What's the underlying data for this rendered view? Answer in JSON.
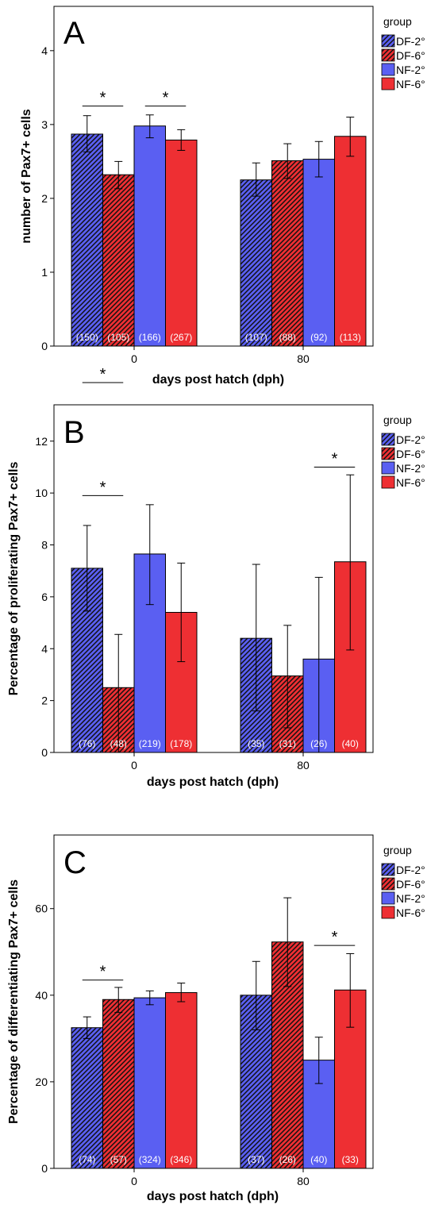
{
  "legend": {
    "title": "group",
    "entries": [
      {
        "label": "DF-2°",
        "color": "#5a5ff2",
        "hatched": true
      },
      {
        "label": "DF-6°",
        "color": "#ee2f33",
        "hatched": true
      },
      {
        "label": "NF-2°",
        "color": "#5a5ff2",
        "hatched": false
      },
      {
        "label": "NF-6°",
        "color": "#ee2f33",
        "hatched": false
      }
    ]
  },
  "chart_data": [
    {
      "type": "bar",
      "panel_letter": "A",
      "xlabel": "days post hatch (dph)",
      "ylabel": "number of Pax7+ cells",
      "ylim": [
        0,
        4.6
      ],
      "yticks": [
        0,
        1,
        2,
        3,
        4
      ],
      "categories": [
        "0",
        "80"
      ],
      "series": [
        {
          "name": "DF-2°",
          "values": [
            2.87,
            2.25
          ],
          "err_low": [
            2.63,
            2.03
          ],
          "err_high": [
            3.12,
            2.48
          ],
          "n": [
            "(150)",
            "(107)"
          ]
        },
        {
          "name": "DF-6°",
          "values": [
            2.32,
            2.51
          ],
          "err_low": [
            2.13,
            2.27
          ],
          "err_high": [
            2.5,
            2.74
          ],
          "n": [
            "(105)",
            "(88)"
          ]
        },
        {
          "name": "NF-2°",
          "values": [
            2.98,
            2.53
          ],
          "err_low": [
            2.82,
            2.29
          ],
          "err_high": [
            3.13,
            2.77
          ],
          "n": [
            "(166)",
            "(92)"
          ]
        },
        {
          "name": "NF-6°",
          "values": [
            2.79,
            2.84
          ],
          "err_low": [
            2.65,
            2.57
          ],
          "err_high": [
            2.93,
            3.1
          ],
          "n": [
            "(267)",
            "(113)"
          ]
        }
      ],
      "significance": [
        {
          "label": "*",
          "category": "0",
          "between": [
            "DF-2°",
            "DF-6°"
          ],
          "placement": "above",
          "y": 3.25
        },
        {
          "label": "*",
          "category": "0",
          "between": [
            "NF-2°",
            "NF-6°"
          ],
          "placement": "above",
          "y": 3.25
        },
        {
          "label": "*",
          "category": "0",
          "between": [
            "DF-2°",
            "DF-6°"
          ],
          "placement": "below-axis"
        }
      ]
    },
    {
      "type": "bar",
      "panel_letter": "B",
      "xlabel": "days post hatch (dph)",
      "ylabel": "Percentage of proliferating Pax7+ cells",
      "ylim": [
        0,
        13.4
      ],
      "yticks": [
        0,
        2,
        4,
        6,
        8,
        10,
        12
      ],
      "categories": [
        "0",
        "80"
      ],
      "series": [
        {
          "name": "DF-2°",
          "values": [
            7.1,
            4.4
          ],
          "err_low": [
            5.45,
            1.6
          ],
          "err_high": [
            8.75,
            7.25
          ],
          "n": [
            "(76)",
            "(35)"
          ]
        },
        {
          "name": "DF-6°",
          "values": [
            2.5,
            2.95
          ],
          "err_low": [
            0,
            0.95
          ],
          "err_high": [
            4.55,
            4.9
          ],
          "n": [
            "(48)",
            "(31)"
          ]
        },
        {
          "name": "NF-2°",
          "values": [
            7.65,
            3.6
          ],
          "err_low": [
            5.7,
            0
          ],
          "err_high": [
            9.55,
            6.75
          ],
          "n": [
            "(219)",
            "(26)"
          ]
        },
        {
          "name": "NF-6°",
          "values": [
            5.4,
            7.35
          ],
          "err_low": [
            3.5,
            3.95
          ],
          "err_high": [
            7.3,
            10.7
          ],
          "n": [
            "(178)",
            "(40)"
          ]
        }
      ],
      "significance": [
        {
          "label": "*",
          "category": "0",
          "between": [
            "DF-2°",
            "DF-6°"
          ],
          "placement": "above",
          "y": 9.9
        },
        {
          "label": "*",
          "category": "80",
          "between": [
            "NF-2°",
            "NF-6°"
          ],
          "placement": "above",
          "y": 11.0
        }
      ]
    },
    {
      "type": "bar",
      "panel_letter": "C",
      "xlabel": "days post hatch (dph)",
      "ylabel": "Percentage of differentiating Pax7+ cells",
      "ylim": [
        0,
        77
      ],
      "yticks": [
        0,
        20,
        40,
        60
      ],
      "categories": [
        "0",
        "80"
      ],
      "series": [
        {
          "name": "DF-2°",
          "values": [
            32.5,
            40
          ],
          "err_low": [
            30,
            32
          ],
          "err_high": [
            35,
            47.8
          ],
          "n": [
            "(74)",
            "(37)"
          ]
        },
        {
          "name": "DF-6°",
          "values": [
            39,
            52.3
          ],
          "err_low": [
            36,
            42
          ],
          "err_high": [
            41.8,
            62.5
          ],
          "n": [
            "(57)",
            "(26)"
          ]
        },
        {
          "name": "NF-2°",
          "values": [
            39.4,
            25
          ],
          "err_low": [
            37.8,
            19.6
          ],
          "err_high": [
            41,
            30.3
          ],
          "n": [
            "(324)",
            "(40)"
          ]
        },
        {
          "name": "NF-6°",
          "values": [
            40.6,
            41.2
          ],
          "err_low": [
            38.5,
            32.6
          ],
          "err_high": [
            42.8,
            49.6
          ],
          "n": [
            "(346)",
            "(33)"
          ]
        }
      ],
      "significance": [
        {
          "label": "*",
          "category": "0",
          "between": [
            "DF-2°",
            "DF-6°"
          ],
          "placement": "above",
          "y": 43.5
        },
        {
          "label": "*",
          "category": "80",
          "between": [
            "NF-2°",
            "NF-6°"
          ],
          "placement": "above",
          "y": 51.5
        }
      ]
    }
  ]
}
